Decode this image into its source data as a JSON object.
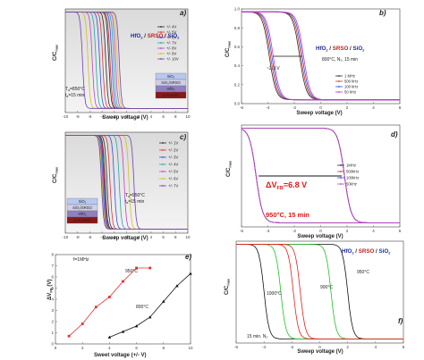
{
  "figure": {
    "panels": [
      "a)",
      "b)",
      "c)",
      "d)",
      "e)",
      "f)"
    ],
    "cv_ylabel": "C/C",
    "cv_ylabel_sub": "max",
    "sweep_label": "Sweep voltage (V)",
    "stack_a": [
      "HfO",
      "2",
      " / ",
      "SRSO",
      " / ",
      "SiO",
      "2"
    ],
    "stack_b": [
      "HfO",
      "2",
      " / ",
      "SRSO",
      " / ",
      "SiO",
      "2"
    ],
    "stack_f": [
      "HfO",
      "2",
      " / ",
      "SRSO",
      " / ",
      "SiO",
      "2"
    ],
    "anneal_a": [
      "T",
      "a",
      "=850°C",
      "t",
      "a",
      "=15 min"
    ],
    "anneal_c": [
      "T",
      "a",
      "=950°C",
      "t",
      "a",
      "=15 min"
    ],
    "anneal_b": "800°C, N₂, 15 min",
    "window_b": "~2.3 V",
    "window_d": "ΔV",
    "window_d_sub": "FB",
    "window_d_val": "=6.8 V",
    "anneal_d": "950°C, 15 min",
    "stack_layers_a": [
      "SiO₂",
      "SiO₂/SRSO",
      "HfO₂",
      "p-Si wafer"
    ],
    "stack_layers_c": [
      "SiO₂",
      "SiO₂/SRSO",
      "HfO₂",
      "p-Si wafer"
    ],
    "freq_e": "f=1MHz",
    "e_ylabel": "ΔV",
    "e_ylabel_sub": "FB",
    "e_yunit": " (V)",
    "e_xlabel": "Sweet voltage (+/- V)",
    "f_note": "15 min. N₂",
    "f_labels": [
      "950°C",
      "900°C",
      "1000°C"
    ]
  },
  "chart_data": [
    {
      "type": "line",
      "panel": "a)",
      "xlim": [
        -10,
        10
      ],
      "ylim": [
        0,
        1
      ],
      "xticks": [
        -10,
        -8,
        -6,
        -4,
        -2,
        0,
        2,
        4,
        6,
        8,
        10
      ],
      "xlabel": "Sweep voltage (V)",
      "series": [
        {
          "name": "+/- 4V",
          "color": "#2a2a2a",
          "v_fwd": -2.9,
          "v_rev": -3.4
        },
        {
          "name": "+/- 5V",
          "color": "#e03030",
          "v_fwd": -2.7,
          "v_rev": -3.9
        },
        {
          "name": "+/- 6V",
          "color": "#3050e0",
          "v_fwd": -2.4,
          "v_rev": -4.4
        },
        {
          "name": "+/- 7V",
          "color": "#20a8a8",
          "v_fwd": -2.1,
          "v_rev": -5.0
        },
        {
          "name": "+/- 8V",
          "color": "#c040c0",
          "v_fwd": -1.8,
          "v_rev": -5.6
        },
        {
          "name": "+/- 9V",
          "color": "#d0c020",
          "v_fwd": -1.5,
          "v_rev": -6.3
        },
        {
          "name": "+/- 10V",
          "color": "#7040b0",
          "v_fwd": -1.2,
          "v_rev": -7.2
        }
      ]
    },
    {
      "type": "line",
      "panel": "b)",
      "xlim": [
        -6,
        6
      ],
      "ylim": [
        0,
        1
      ],
      "xticks": [
        -6,
        -4,
        -2,
        0,
        2,
        4,
        6
      ],
      "yticks": [
        0.0,
        0.2,
        0.4,
        0.6,
        0.8,
        1.0
      ],
      "xlabel": "Sweep voltage (V)",
      "series": [
        {
          "name": "1 MHz",
          "color": "#2a2a2a",
          "v_fwd": -3.9,
          "v_rev": -1.6
        },
        {
          "name": "500 kHz",
          "color": "#e03030",
          "v_fwd": -3.8,
          "v_rev": -1.5
        },
        {
          "name": "100 kHz",
          "color": "#3050e0",
          "v_fwd": -3.7,
          "v_rev": -1.4
        },
        {
          "name": "50 kHz",
          "color": "#c040c0",
          "v_fwd": -3.6,
          "v_rev": -1.3
        }
      ]
    },
    {
      "type": "line",
      "panel": "c)",
      "xlim": [
        -10,
        10
      ],
      "ylim": [
        0,
        1
      ],
      "xticks": [
        -10,
        -8,
        -6,
        -4,
        -2,
        0,
        2,
        4,
        6,
        8,
        10
      ],
      "xlabel": "Sweep voltage (V)",
      "series": [
        {
          "name": "+/- 1V",
          "color": "#2a2a2a",
          "v_fwd": -3.2,
          "v_rev": -3.5
        },
        {
          "name": "+/- 2V",
          "color": "#e03030",
          "v_fwd": -2.7,
          "v_rev": -3.6
        },
        {
          "name": "+/- 3V",
          "color": "#3050e0",
          "v_fwd": -2.0,
          "v_rev": -3.7
        },
        {
          "name": "+/- 4V",
          "color": "#20a8a8",
          "v_fwd": -1.2,
          "v_rev": -3.8
        },
        {
          "name": "+/- 5V",
          "color": "#c040c0",
          "v_fwd": -0.4,
          "v_rev": -3.9
        },
        {
          "name": "+/- 6V",
          "color": "#d0c020",
          "v_fwd": 0.4,
          "v_rev": -4.0
        },
        {
          "name": "+/- 7V",
          "color": "#7040b0",
          "v_fwd": 1.2,
          "v_rev": -4.1
        }
      ]
    },
    {
      "type": "line",
      "panel": "d)",
      "xlim": [
        -6,
        6
      ],
      "ylim": [
        0,
        1
      ],
      "xticks": [
        -6,
        -4,
        -2,
        0,
        2,
        4,
        6
      ],
      "xlabel": "Sweep voltage (V)",
      "series": [
        {
          "name": "1MHz",
          "color": "#2a2a2a",
          "v_fwd": -4.9,
          "v_rev": 1.8
        },
        {
          "name": "500kHz",
          "color": "#e03030",
          "v_fwd": -4.9,
          "v_rev": 1.8
        },
        {
          "name": "100kHz",
          "color": "#3050e0",
          "v_fwd": -4.9,
          "v_rev": 1.8
        },
        {
          "name": "50kHz",
          "color": "#c040c0",
          "v_fwd": -4.9,
          "v_rev": 1.8
        }
      ]
    },
    {
      "type": "scatter",
      "panel": "e)",
      "xlim": [
        0,
        10
      ],
      "ylim": [
        0,
        8
      ],
      "xticks": [
        0,
        2,
        4,
        6,
        8,
        10
      ],
      "yticks": [
        0,
        1,
        2,
        3,
        4,
        5,
        6,
        7,
        8
      ],
      "xlabel": "Sweet voltage (+/- V)",
      "ylabel": "ΔV_FB (V)",
      "series": [
        {
          "name": "950°C",
          "color": "#e03030",
          "x": [
            1,
            2,
            3,
            4,
            5,
            6,
            7
          ],
          "y": [
            0.7,
            1.8,
            3.3,
            4.2,
            5.6,
            6.8,
            6.8
          ]
        },
        {
          "name": "800°C",
          "color": "#111111",
          "x": [
            4,
            5,
            6,
            7,
            8,
            9,
            10
          ],
          "y": [
            0.6,
            1.1,
            1.6,
            2.4,
            3.8,
            5.2,
            6.3
          ]
        }
      ]
    },
    {
      "type": "line",
      "panel": "f)",
      "xlim": [
        -6,
        6
      ],
      "ylim": [
        0,
        1
      ],
      "xticks": [
        -6,
        -4,
        -2,
        0,
        2,
        4,
        6
      ],
      "xlabel": "Sweep voltage (V)",
      "series": [
        {
          "name": "950°C",
          "color": "#111111",
          "v_fwd": -4.0,
          "v_rev": 2.0
        },
        {
          "name": "900°C",
          "color": "#22c022",
          "v_fwd": -2.8,
          "v_rev": 0.8
        },
        {
          "name": "1000°C",
          "color": "#e02020",
          "v_fwd": -1.9,
          "v_rev": -1.4
        }
      ]
    }
  ]
}
